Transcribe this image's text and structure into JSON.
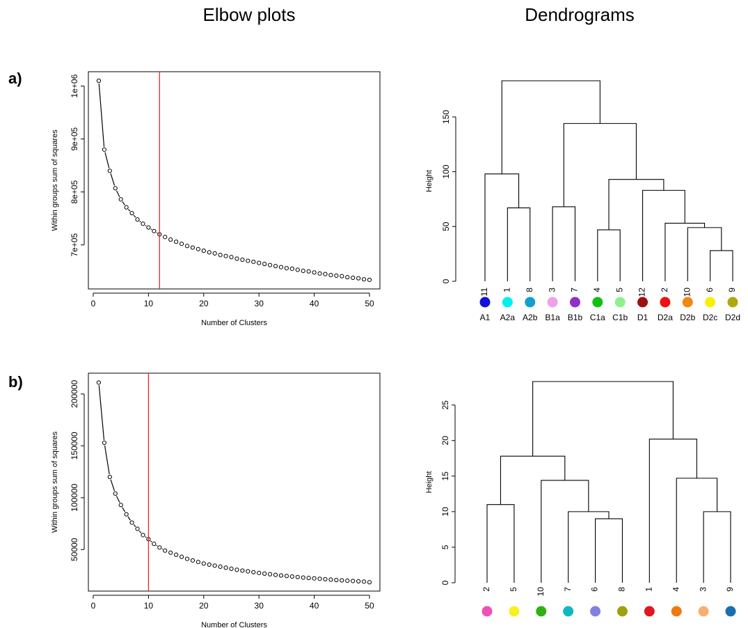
{
  "titles": {
    "left": "Elbow plots",
    "right": "Dendrograms"
  },
  "panels": {
    "a": "a)",
    "b": "b)"
  },
  "chart_data": [
    {
      "id": "elbow-a",
      "type": "scatter",
      "xlabel": "Number of Clusters",
      "ylabel": "Within groups sum of squares",
      "xlim": [
        0,
        50
      ],
      "ylim": [
        630000,
        1010000
      ],
      "xticks": [
        0,
        10,
        20,
        30,
        40,
        50
      ],
      "yticks": [
        700000,
        800000,
        900000,
        1000000
      ],
      "ytick_labels": [
        "7e+05",
        "8e+05",
        "9e+05",
        "1e+06"
      ],
      "grid": false,
      "vline": {
        "x": 12,
        "color": "#e8262b"
      },
      "x": [
        1,
        2,
        3,
        4,
        5,
        6,
        7,
        8,
        9,
        10,
        11,
        12,
        13,
        14,
        15,
        16,
        17,
        18,
        19,
        20,
        21,
        22,
        23,
        24,
        25,
        26,
        27,
        28,
        29,
        30,
        31,
        32,
        33,
        34,
        35,
        36,
        37,
        38,
        39,
        40,
        41,
        42,
        43,
        44,
        45,
        46,
        47,
        48,
        49,
        50
      ],
      "y": [
        1010000,
        880000,
        840000,
        807000,
        786000,
        771000,
        760000,
        748000,
        740000,
        733000,
        726000,
        720000,
        715000,
        710000,
        706000,
        702000,
        698000,
        695000,
        692000,
        689000,
        686000,
        684000,
        681000,
        679000,
        677000,
        674000,
        672000,
        670000,
        668000,
        666000,
        664000,
        662000,
        660000,
        658000,
        656000,
        655000,
        653000,
        651000,
        650000,
        648000,
        646000,
        645000,
        643000,
        642000,
        641000,
        639000,
        638000,
        637000,
        635000,
        634000
      ]
    },
    {
      "id": "dendro-a",
      "type": "dendrogram",
      "ylabel": "Height",
      "ylim": [
        0,
        183
      ],
      "yticks": [
        0,
        50,
        100,
        150
      ],
      "leaves": [
        "11",
        "1",
        "8",
        "3",
        "7",
        "4",
        "5",
        "12",
        "2",
        "10",
        "6",
        "9"
      ],
      "leaf_names": [
        "A1",
        "A2a",
        "A2b",
        "B1a",
        "B1b",
        "C1a",
        "C1b",
        "D1",
        "D2a",
        "D2b",
        "D2c",
        "D2d"
      ],
      "leaf_colors": [
        "#1010d8",
        "#00f0f0",
        "#10a0d0",
        "#f0a0e8",
        "#9030c8",
        "#10c010",
        "#90f090",
        "#a01010",
        "#f01010",
        "#f08810",
        "#f8f000",
        "#b0a810"
      ],
      "merges": [
        [
          11,
          12,
          28
        ],
        [
          10,
          -1,
          49
        ],
        [
          9,
          -2,
          53
        ],
        [
          6,
          7,
          47
        ],
        [
          8,
          -3,
          83
        ],
        [
          -4,
          -5,
          93
        ],
        [
          4,
          5,
          68
        ],
        [
          -6,
          -7,
          144
        ],
        [
          2,
          3,
          67
        ],
        [
          1,
          -9,
          98
        ],
        [
          -10,
          -8,
          183
        ]
      ]
    },
    {
      "id": "elbow-b",
      "type": "scatter",
      "xlabel": "Number of Clusters",
      "ylabel": "Within groups sum of squares",
      "xlim": [
        0,
        50
      ],
      "ylim": [
        18000,
        212000
      ],
      "xticks": [
        0,
        10,
        20,
        30,
        40,
        50
      ],
      "yticks": [
        50000,
        100000,
        150000,
        200000
      ],
      "ytick_labels": [
        "50000",
        "100000",
        "150000",
        "200000"
      ],
      "grid": false,
      "vline": {
        "x": 10,
        "color": "#e8262b"
      },
      "x": [
        1,
        2,
        3,
        4,
        5,
        6,
        7,
        8,
        9,
        10,
        11,
        12,
        13,
        14,
        15,
        16,
        17,
        18,
        19,
        20,
        21,
        22,
        23,
        24,
        25,
        26,
        27,
        28,
        29,
        30,
        31,
        32,
        33,
        34,
        35,
        36,
        37,
        38,
        39,
        40,
        41,
        42,
        43,
        44,
        45,
        46,
        47,
        48,
        49,
        50
      ],
      "y": [
        211000,
        153000,
        120000,
        104000,
        93000,
        84000,
        76000,
        70000,
        64000,
        60000,
        55500,
        52000,
        49000,
        47000,
        45000,
        43000,
        41000,
        39500,
        38000,
        36500,
        35500,
        34500,
        33500,
        32500,
        31500,
        30500,
        29700,
        29000,
        28200,
        27500,
        26800,
        26200,
        25600,
        25000,
        24500,
        24000,
        23500,
        23000,
        22600,
        22200,
        21800,
        21400,
        21000,
        20600,
        20300,
        20000,
        19700,
        19400,
        19100,
        18500
      ]
    },
    {
      "id": "dendro-b",
      "type": "dendrogram",
      "ylabel": "Height",
      "ylim": [
        0,
        28.3
      ],
      "yticks": [
        0,
        5,
        10,
        15,
        20,
        25
      ],
      "leaves": [
        "2",
        "5",
        "10",
        "7",
        "6",
        "8",
        "1",
        "4",
        "3",
        "9"
      ],
      "leaf_names": [],
      "leaf_colors": [
        "#f050b8",
        "#f8f020",
        "#30b010",
        "#10b8c0",
        "#8080e0",
        "#a0a010",
        "#e01820",
        "#f07810",
        "#f8b070",
        "#1870b0"
      ],
      "merges": [
        [
          5,
          6,
          9
        ],
        [
          4,
          -1,
          10
        ],
        [
          9,
          10,
          10
        ],
        [
          1,
          2,
          11
        ],
        [
          3,
          -2,
          14.4
        ],
        [
          -4,
          -5,
          17.8
        ],
        [
          8,
          -3,
          14.7
        ],
        [
          7,
          -7,
          20.2
        ],
        [
          -6,
          -8,
          28.3
        ]
      ]
    }
  ]
}
